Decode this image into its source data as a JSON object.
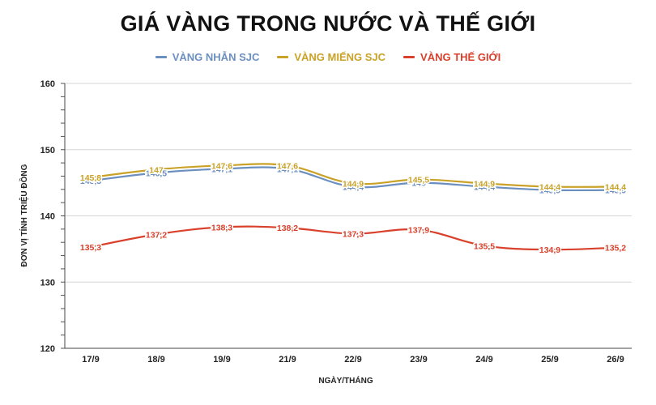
{
  "chart_data": {
    "type": "line",
    "title": "GIÁ VÀNG TRONG NƯỚC VÀ THẾ GIỚI",
    "xlabel": "NGÀY/THÁNG",
    "ylabel": "ĐƠN VỊ TÍNH TRIỆU ĐỒNG",
    "categories": [
      "17/9",
      "18/9",
      "19/9",
      "21/9",
      "22/9",
      "23/9",
      "24/9",
      "25/9",
      "26/9"
    ],
    "ylim": [
      120,
      160
    ],
    "yticks": [
      "120",
      "130",
      "140",
      "150",
      "160"
    ],
    "grid": true,
    "legend_position": "top-center",
    "series": [
      {
        "name": "VÀNG NHẪN SJC",
        "color": "#6b8fbf",
        "values": [
          145.3,
          146.5,
          147.1,
          147.1,
          144.4,
          145.0,
          144.4,
          143.9,
          143.9
        ],
        "labels": [
          "145,3",
          "146,5",
          "147,1",
          "147,1",
          "144,4",
          "145",
          "144,4",
          "143,9",
          "143,9"
        ]
      },
      {
        "name": "VÀNG MIẾNG SJC",
        "color": "#c9a227",
        "values": [
          145.8,
          147.0,
          147.6,
          147.6,
          144.9,
          145.5,
          144.9,
          144.4,
          144.4
        ],
        "labels": [
          "145,8",
          "147",
          "147,6",
          "147,6",
          "144,9",
          "145,5",
          "144,9",
          "144,4",
          "144,4"
        ]
      },
      {
        "name": "VÀNG THẾ GIỚI",
        "color": "#d9412c",
        "values": [
          135.3,
          137.2,
          138.3,
          138.2,
          137.3,
          137.9,
          135.5,
          134.9,
          135.2
        ],
        "labels": [
          "135,3",
          "137,2",
          "138,3",
          "138,2",
          "137,3",
          "137,9",
          "135,5",
          "134,9",
          "135,2"
        ]
      }
    ]
  }
}
